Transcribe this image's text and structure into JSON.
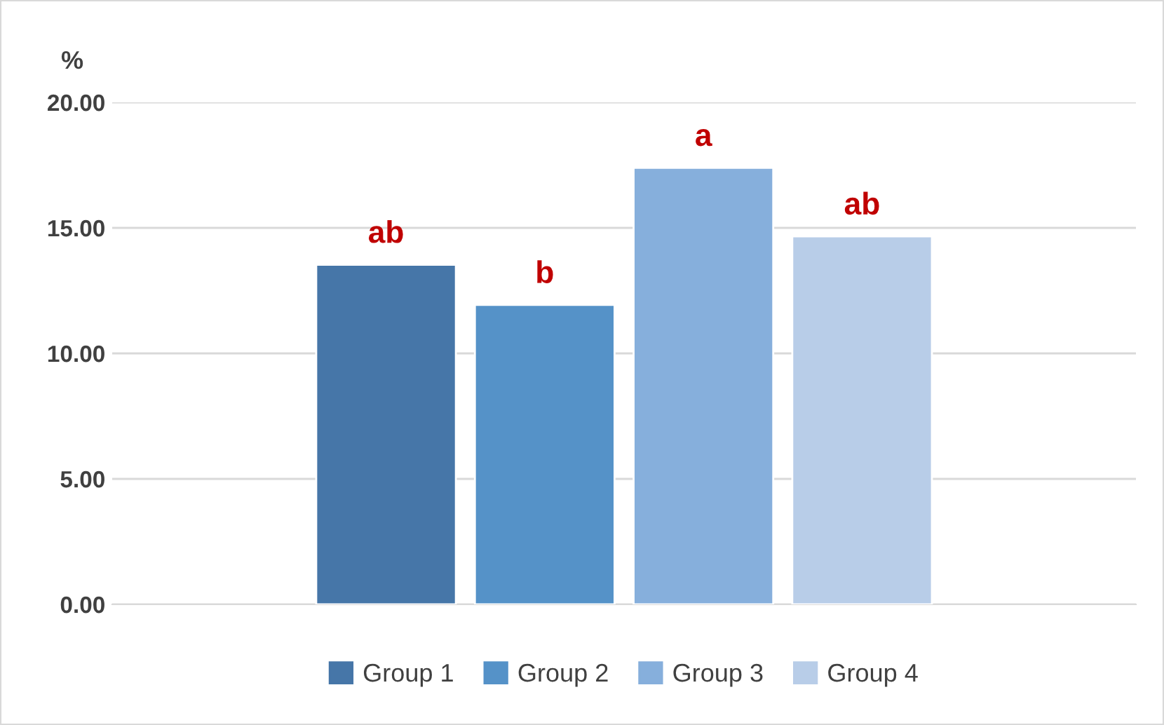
{
  "chart_data": {
    "type": "bar",
    "ylabel": "%",
    "categories": [
      null
    ],
    "series": [
      {
        "name": "Group 1",
        "color": "#4676a8",
        "values": [
          13.53
        ]
      },
      {
        "name": "Group 2",
        "color": "#5592c8",
        "values": [
          11.93
        ]
      },
      {
        "name": "Group 3",
        "color": "#86afdc",
        "values": [
          17.39
        ]
      },
      {
        "name": "Group 4",
        "color": "#b8cde8",
        "values": [
          14.66
        ]
      }
    ],
    "annotations": [
      {
        "text": "ab",
        "y": 13.53
      },
      {
        "text": "b",
        "y": 11.93
      },
      {
        "text": "a",
        "y": 17.39
      },
      {
        "text": "ab",
        "y": 14.66
      }
    ],
    "ylim": [
      0,
      20
    ],
    "yticks": [
      {
        "value": 0,
        "label": "0.00"
      },
      {
        "value": 5,
        "label": "5.00"
      },
      {
        "value": 10,
        "label": "10.00"
      },
      {
        "value": 15,
        "label": "15.00"
      },
      {
        "value": 20,
        "label": "20.00"
      }
    ],
    "grid": "y",
    "legend": "bottom"
  }
}
